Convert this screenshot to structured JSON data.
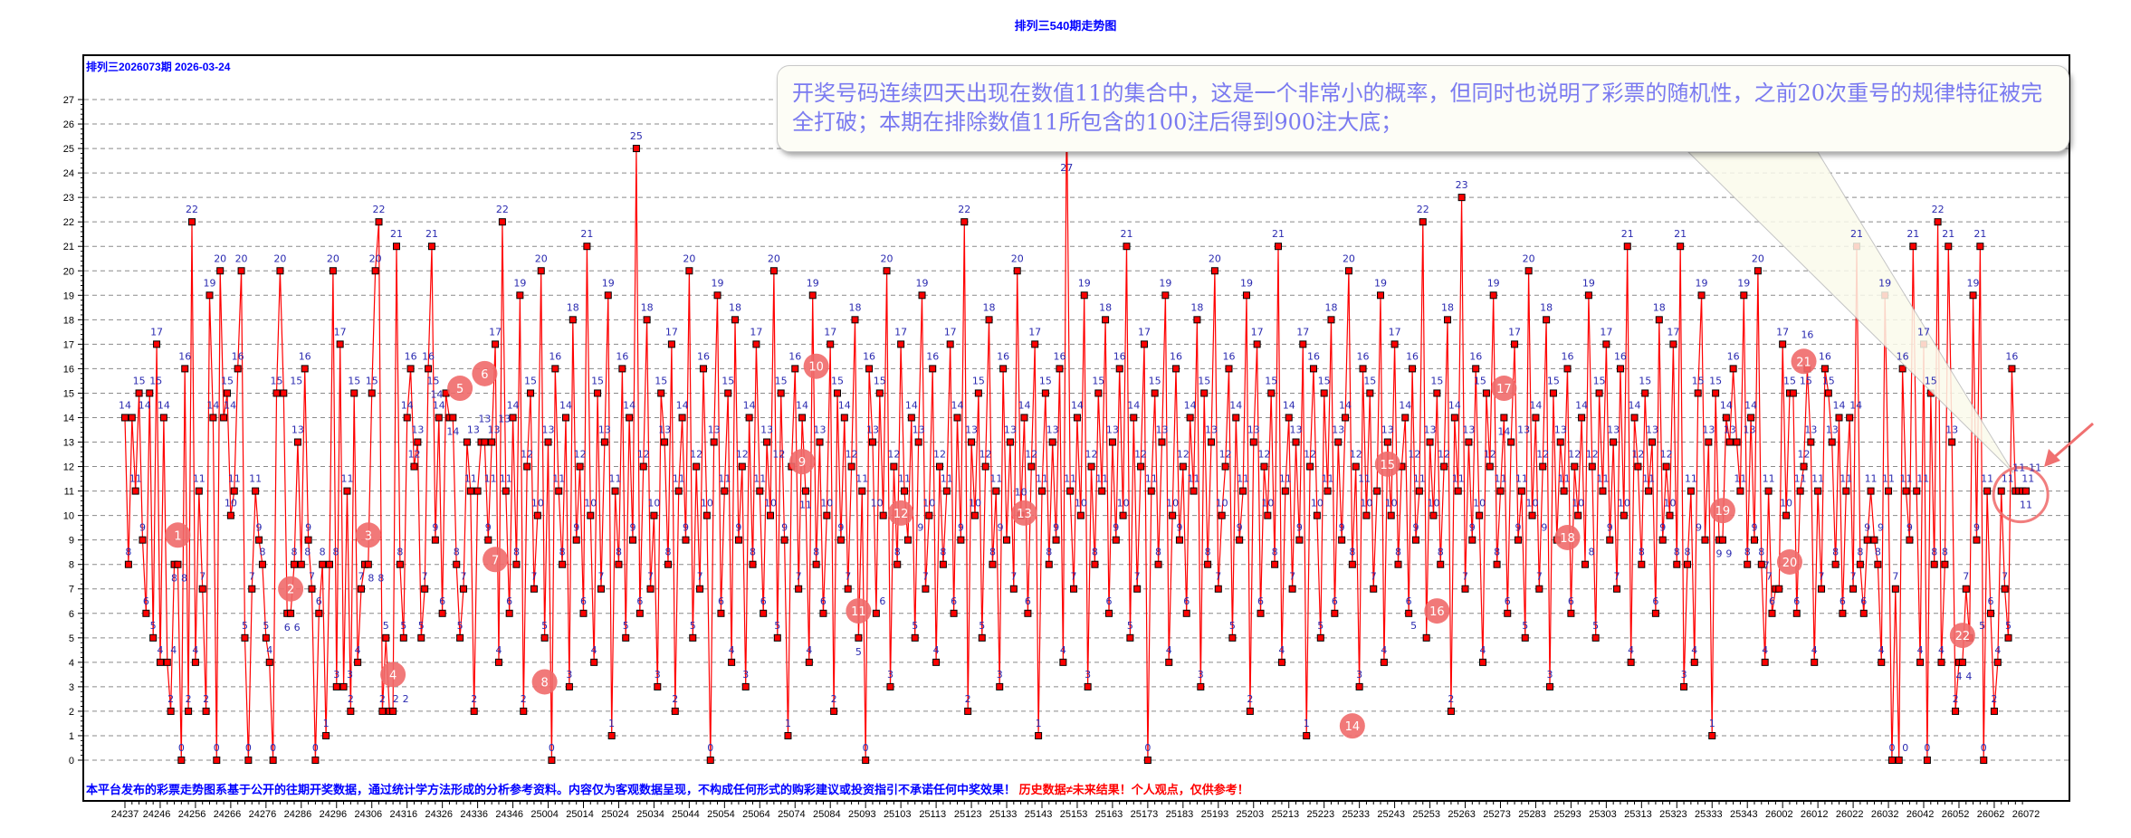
{
  "title": "排列三540期走势图",
  "issue_header": "排列三2026073期  2026-03-24",
  "callout_text": "开奖号码连续四天出现在数值11的集合中，这是一个非常小的概率，但同时也说明了彩票的随机性，之前20次重号的规律特征被完全打破；本期在排除数值11所包含的100注后得到900注大底；",
  "footer": {
    "disclaimer": "本平台发布的彩票走势图系基于公开的往期开奖数据，通过统计学方法形成的分析参考资料。内容仅为客观数据呈现，不构成任何形式的购彩建议或投资指引不承诺任何中奖效果！",
    "warning": "历史数据≠未来结果！个人观点，仅供参考！"
  },
  "colors": {
    "line": "#ff0000",
    "point": "#ff0000",
    "label": "#2a2ab0",
    "marker": "#f06a6a",
    "title": "#0000ff"
  },
  "chart_data": {
    "type": "line",
    "title": "排列三540期走势图",
    "xlabel": "",
    "ylabel": "",
    "ylim": [
      0,
      27
    ],
    "yticks": [
      0,
      1,
      2,
      3,
      4,
      5,
      6,
      7,
      8,
      9,
      10,
      11,
      12,
      13,
      14,
      15,
      16,
      17,
      18,
      19,
      20,
      21,
      22,
      23,
      24,
      25,
      26,
      27
    ],
    "grid": true,
    "xtick_labels": [
      "24237",
      "24246",
      "24256",
      "24266",
      "24276",
      "24286",
      "24296",
      "24306",
      "24316",
      "24326",
      "24336",
      "24346",
      "25004",
      "25014",
      "25024",
      "25034",
      "25044",
      "25054",
      "25064",
      "25074",
      "25084",
      "25093",
      "25103",
      "25113",
      "25123",
      "25133",
      "25143",
      "25153",
      "25163",
      "25173",
      "25183",
      "25193",
      "25203",
      "25213",
      "25223",
      "25233",
      "25243",
      "25253",
      "25263",
      "25273",
      "25283",
      "25293",
      "25303",
      "25313",
      "25323",
      "25333",
      "25343",
      "26002",
      "26012",
      "26022",
      "26032",
      "26042",
      "26052",
      "26062",
      "26072"
    ],
    "values": [
      14,
      8,
      14,
      11,
      15,
      9,
      6,
      15,
      5,
      17,
      4,
      14,
      4,
      2,
      8,
      8,
      0,
      16,
      2,
      22,
      4,
      11,
      7,
      2,
      19,
      14,
      0,
      20,
      14,
      15,
      10,
      11,
      16,
      20,
      5,
      0,
      7,
      11,
      9,
      8,
      5,
      4,
      0,
      15,
      20,
      15,
      6,
      6,
      8,
      13,
      8,
      16,
      9,
      7,
      0,
      6,
      8,
      1,
      8,
      20,
      3,
      17,
      3,
      11,
      2,
      15,
      4,
      7,
      8,
      8,
      15,
      20,
      22,
      2,
      5,
      2,
      2,
      21,
      8,
      5,
      14,
      16,
      12,
      13,
      5,
      7,
      16,
      21,
      9,
      14,
      6,
      15,
      14,
      14,
      8,
      5,
      7,
      13,
      11,
      2,
      11,
      13,
      13,
      9,
      13,
      17,
      4,
      22,
      11,
      6,
      14,
      8,
      19,
      2,
      12,
      15,
      7,
      10,
      20,
      5,
      13,
      0,
      16,
      11,
      8,
      14,
      3,
      18,
      9,
      12,
      6,
      21,
      10,
      4,
      15,
      7,
      13,
      19,
      1,
      11,
      8,
      16,
      5,
      14,
      9,
      25,
      6,
      12,
      18,
      7,
      10,
      3,
      15,
      13,
      8,
      17,
      2,
      11,
      14,
      9,
      20,
      5,
      12,
      7,
      16,
      10,
      0,
      13,
      19,
      6,
      11,
      15,
      4,
      18,
      9,
      12,
      3,
      14,
      8,
      17,
      11,
      6,
      13,
      10,
      20,
      5,
      15,
      9,
      1,
      12,
      16,
      7,
      14,
      11,
      4,
      19,
      8,
      13,
      6,
      10,
      17,
      2,
      15,
      9,
      14,
      7,
      12,
      18,
      5,
      11,
      0,
      16,
      13,
      6,
      15,
      10,
      20,
      3,
      12,
      8,
      17,
      11,
      9,
      14,
      5,
      13,
      19,
      7,
      10,
      16,
      4,
      12,
      8,
      11,
      17,
      6,
      14,
      9,
      22,
      2,
      13,
      10,
      15,
      5,
      12,
      18,
      8,
      11,
      3,
      16,
      9,
      13,
      7,
      20,
      10,
      14,
      6,
      12,
      17,
      1,
      11,
      15,
      8,
      13,
      9,
      16,
      4,
      27,
      11,
      7,
      14,
      10,
      19,
      3,
      12,
      8,
      15,
      11,
      18,
      6,
      13,
      9,
      16,
      10,
      21,
      5,
      14,
      7,
      12,
      17,
      0,
      11,
      15,
      8,
      13,
      19,
      4,
      10,
      16,
      9,
      12,
      6,
      14,
      11,
      18,
      3,
      15,
      8,
      13,
      20,
      7,
      10,
      12,
      16,
      5,
      14,
      9,
      11,
      19,
      2,
      13,
      17,
      6,
      12,
      10,
      15,
      8,
      21,
      4,
      11,
      14,
      7,
      13,
      9,
      17,
      1,
      12,
      16,
      10,
      5,
      15,
      11,
      18,
      6,
      13,
      9,
      14,
      20,
      8,
      12,
      3,
      16,
      10,
      15,
      7,
      11,
      19,
      4,
      13,
      10,
      17,
      8,
      12,
      14,
      6,
      16,
      9,
      11,
      22,
      5,
      13,
      10,
      15,
      8,
      12,
      18,
      2,
      14,
      11,
      23,
      7,
      13,
      9,
      16,
      10,
      4,
      15,
      12,
      19,
      8,
      11,
      14,
      6,
      13,
      17,
      9,
      11,
      5,
      20,
      10,
      14,
      7,
      12,
      18,
      3,
      15,
      9,
      13,
      11,
      16,
      6,
      12,
      10,
      14,
      8,
      19,
      12,
      5,
      15,
      11,
      17,
      9,
      13,
      7,
      16,
      10,
      21,
      4,
      14,
      12,
      8,
      15,
      11,
      13,
      6,
      18,
      9,
      12,
      10,
      17,
      8,
      21,
      3,
      8,
      11,
      4,
      15,
      19,
      9,
      13,
      1,
      15,
      9,
      9,
      14,
      13,
      16,
      13,
      11,
      19,
      8,
      14,
      9,
      20,
      8,
      4,
      11,
      6,
      7,
      7,
      17,
      10,
      15,
      15,
      6,
      11,
      12,
      16,
      13,
      4,
      11,
      7,
      16,
      15,
      13,
      8,
      14,
      6,
      11,
      14,
      7,
      21,
      8,
      6,
      9,
      11,
      9,
      8,
      4,
      19,
      11,
      0,
      7,
      0,
      16,
      11,
      9,
      21,
      11,
      4,
      17,
      0,
      15,
      8,
      22,
      4,
      8,
      21,
      13,
      2,
      4,
      4,
      7,
      5,
      19,
      9,
      21,
      0,
      11,
      6,
      2,
      4,
      11,
      7,
      5,
      16,
      11,
      11,
      11,
      11
    ],
    "markers": [
      {
        "label": "1",
        "index": 15,
        "value": 9.2
      },
      {
        "label": "2",
        "index": 47,
        "value": 7
      },
      {
        "label": "3",
        "index": 69,
        "value": 9.2
      },
      {
        "label": "4",
        "index": 76,
        "value": 3.5
      },
      {
        "label": "5",
        "index": 95,
        "value": 15.2
      },
      {
        "label": "6",
        "index": 102,
        "value": 15.8
      },
      {
        "label": "7",
        "index": 105,
        "value": 8.2
      },
      {
        "label": "8",
        "index": 119,
        "value": 3.2
      },
      {
        "label": "9",
        "index": 192,
        "value": 12.2
      },
      {
        "label": "10",
        "index": 196,
        "value": 16.1
      },
      {
        "label": "11",
        "index": 208,
        "value": 6.1
      },
      {
        "label": "12",
        "index": 220,
        "value": 10.1
      },
      {
        "label": "13",
        "index": 255,
        "value": 10.1
      },
      {
        "label": "14",
        "index": 348,
        "value": 1.4
      },
      {
        "label": "15",
        "index": 358,
        "value": 12.1
      },
      {
        "label": "16",
        "index": 372,
        "value": 6.1
      },
      {
        "label": "17",
        "index": 391,
        "value": 15.2
      },
      {
        "label": "18",
        "index": 409,
        "value": 9.1
      },
      {
        "label": "19",
        "index": 453,
        "value": 10.2
      },
      {
        "label": "20",
        "index": 472,
        "value": 8.1
      },
      {
        "label": "21",
        "index": 476,
        "value": 16.3
      },
      {
        "label": "22",
        "index": 521,
        "value": 5.1
      }
    ],
    "highlight": {
      "index_from": 536,
      "index_to": 539,
      "value": 11
    }
  }
}
